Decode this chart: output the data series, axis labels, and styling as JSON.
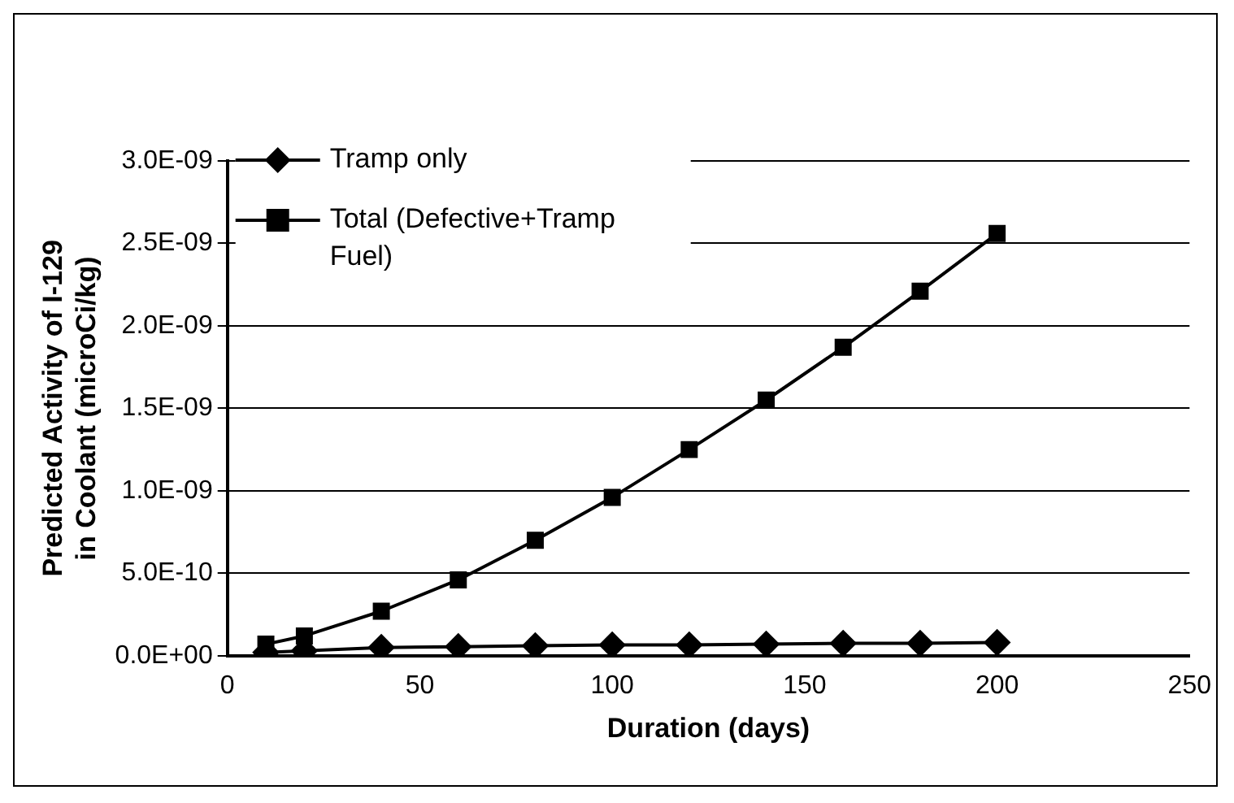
{
  "chart_data": {
    "type": "line",
    "xlabel": "Duration (days)",
    "ylabel": "Predicted Activity of I-129 in Coolant (microCi/kg)",
    "x": [
      10,
      20,
      40,
      60,
      80,
      100,
      120,
      140,
      160,
      180,
      200
    ],
    "series": [
      {
        "name": "Tramp only",
        "color": "#000000",
        "marker": "diamond",
        "values": [
          2e-11,
          3e-11,
          5e-11,
          5.5e-11,
          6e-11,
          6.5e-11,
          6.5e-11,
          7e-11,
          7.5e-11,
          7.5e-11,
          8e-11
        ]
      },
      {
        "name": "Total (Defective+Tramp Fuel)",
        "color": "#000000",
        "marker": "square",
        "values": [
          7e-11,
          1.2e-10,
          2.7e-10,
          4.6e-10,
          7e-10,
          9.6e-10,
          1.25e-09,
          1.55e-09,
          1.87e-09,
          2.21e-09,
          2.56e-09
        ]
      }
    ],
    "xlim": [
      0,
      250
    ],
    "xticks": [
      0,
      50,
      100,
      150,
      200,
      250
    ],
    "ylim": [
      0,
      3e-09
    ],
    "yticks": [
      {
        "value": 0,
        "label": "0.0E+00"
      },
      {
        "value": 5e-10,
        "label": "5.0E-10"
      },
      {
        "value": 1e-09,
        "label": "1.0E-09"
      },
      {
        "value": 1.5e-09,
        "label": "1.5E-09"
      },
      {
        "value": 2e-09,
        "label": "2.0E-09"
      },
      {
        "value": 2.5e-09,
        "label": "2.5E-09"
      },
      {
        "value": 3e-09,
        "label": "3.0E-09"
      }
    ],
    "grid": "y",
    "legend": "top left",
    "line_style": "solid"
  }
}
